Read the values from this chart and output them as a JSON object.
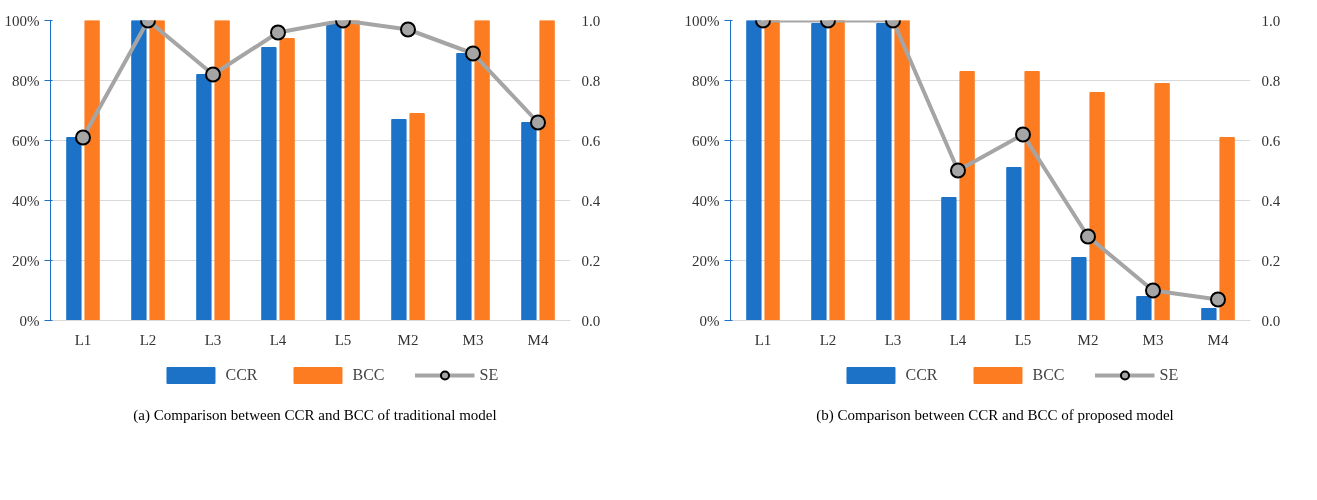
{
  "chart_data": [
    {
      "type": "bar",
      "categories": [
        "L1",
        "L2",
        "L3",
        "L4",
        "L5",
        "M2",
        "M3",
        "M4"
      ],
      "series": [
        {
          "name": "CCR",
          "color": "#1b72c7",
          "values": [
            61,
            100,
            82,
            91,
            99,
            67,
            89,
            66
          ]
        },
        {
          "name": "BCC",
          "color": "#fd7c21",
          "values": [
            100,
            100,
            100,
            94,
            100,
            69,
            100,
            100
          ]
        },
        {
          "name": "SE",
          "type": "line",
          "axis": "y2",
          "color": "#a5a5a5",
          "values": [
            0.61,
            1.0,
            0.82,
            0.96,
            1.0,
            0.97,
            0.89,
            0.66
          ]
        }
      ],
      "ylim": [
        0,
        100
      ],
      "yticks": [
        {
          "value": 0,
          "label": "0%"
        },
        {
          "value": 20,
          "label": "20%"
        },
        {
          "value": 40,
          "label": "40%"
        },
        {
          "value": 60,
          "label": "60%"
        },
        {
          "value": 80,
          "label": "80%"
        },
        {
          "value": 100,
          "label": "100%"
        }
      ],
      "y2lim": [
        0,
        1
      ],
      "y2ticks": [
        {
          "value": 0,
          "label": "0.0"
        },
        {
          "value": 0.2,
          "label": "0.2"
        },
        {
          "value": 0.4,
          "label": "0.4"
        },
        {
          "value": 0.6,
          "label": "0.6"
        },
        {
          "value": 0.8,
          "label": "0.8"
        },
        {
          "value": 1,
          "label": "1.0"
        }
      ],
      "grid": "y",
      "legend": "bottom",
      "marker": "circle",
      "annotations": [
        "(a) Comparison between CCR and BCC of traditional model"
      ]
    },
    {
      "type": "bar",
      "categories": [
        "L1",
        "L2",
        "L3",
        "L4",
        "L5",
        "M2",
        "M3",
        "M4"
      ],
      "series": [
        {
          "name": "CCR",
          "color": "#1b72c7",
          "values": [
            100,
            99,
            99,
            41,
            51,
            21,
            8,
            4
          ]
        },
        {
          "name": "BCC",
          "color": "#fd7c21",
          "values": [
            100,
            100,
            100,
            83,
            83,
            76,
            79,
            61
          ]
        },
        {
          "name": "SE",
          "type": "line",
          "axis": "y2",
          "color": "#a5a5a5",
          "values": [
            1.0,
            1.0,
            1.0,
            0.5,
            0.62,
            0.28,
            0.1,
            0.07
          ]
        }
      ],
      "ylim": [
        0,
        100
      ],
      "yticks": [
        {
          "value": 0,
          "label": "0%"
        },
        {
          "value": 20,
          "label": "20%"
        },
        {
          "value": 40,
          "label": "40%"
        },
        {
          "value": 60,
          "label": "60%"
        },
        {
          "value": 80,
          "label": "80%"
        },
        {
          "value": 100,
          "label": "100%"
        }
      ],
      "y2lim": [
        0,
        1
      ],
      "y2ticks": [
        {
          "value": 0,
          "label": "0.0"
        },
        {
          "value": 0.2,
          "label": "0.2"
        },
        {
          "value": 0.4,
          "label": "0.4"
        },
        {
          "value": 0.6,
          "label": "0.6"
        },
        {
          "value": 0.8,
          "label": "0.8"
        },
        {
          "value": 1,
          "label": "1.0"
        }
      ],
      "grid": "y",
      "legend": "bottom",
      "marker": "circle",
      "annotations": [
        "(b) Comparison between CCR and BCC of proposed model"
      ]
    }
  ]
}
